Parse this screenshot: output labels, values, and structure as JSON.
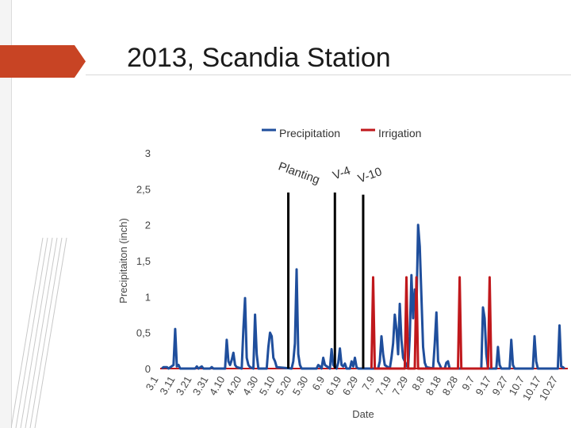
{
  "slide": {
    "title": "2013, Scandia Station"
  },
  "chart_data": {
    "type": "line",
    "title": "",
    "xlabel": "Date",
    "ylabel": "Precipitaiton (inch)",
    "ylim": [
      0,
      3
    ],
    "y_ticks": [
      "0",
      "0,5",
      "1",
      "1,5",
      "2",
      "2,5",
      "3"
    ],
    "x_ticks": [
      "3.1",
      "3.11",
      "3.21",
      "3.31",
      "4.10",
      "4.20",
      "4.30",
      "5.10",
      "5.20",
      "5.30",
      "6.9",
      "6.19",
      "6.29",
      "7.9",
      "7.19",
      "7.29",
      "8.8",
      "8.18",
      "8.28",
      "9.7",
      "9.17",
      "9.27",
      "10.7",
      "10.17",
      "10.27"
    ],
    "x_start": "3.1",
    "x_end": "11.1",
    "legend_position": "top",
    "grid": false,
    "series": [
      {
        "name": "Precipitation",
        "color": "#1f4e9c",
        "points": [
          [
            "3.2",
            0
          ],
          [
            "3.3",
            0.02
          ],
          [
            "3.5",
            0.02
          ],
          [
            "3.6",
            0
          ],
          [
            "3.9",
            0.05
          ],
          [
            "3.10",
            0.55
          ],
          [
            "3.11",
            0.03
          ],
          [
            "3.12",
            0.05
          ],
          [
            "3.13",
            0
          ],
          [
            "3.22",
            0
          ],
          [
            "3.23",
            0.03
          ],
          [
            "3.24",
            0
          ],
          [
            "3.26",
            0.03
          ],
          [
            "3.27",
            0
          ],
          [
            "3.31",
            0
          ],
          [
            "4.1",
            0.02
          ],
          [
            "4.2",
            0
          ],
          [
            "4.9",
            0
          ],
          [
            "4.10",
            0.4
          ],
          [
            "4.11",
            0.1
          ],
          [
            "4.12",
            0.05
          ],
          [
            "4.13",
            0.12
          ],
          [
            "4.14",
            0.22
          ],
          [
            "4.15",
            0.05
          ],
          [
            "4.16",
            0.02
          ],
          [
            "4.19",
            0
          ],
          [
            "4.20",
            0.55
          ],
          [
            "4.21",
            0.98
          ],
          [
            "4.22",
            0.15
          ],
          [
            "4.23",
            0.05
          ],
          [
            "4.24",
            0.02
          ],
          [
            "4.26",
            0
          ],
          [
            "4.27",
            0.75
          ],
          [
            "4.28",
            0.2
          ],
          [
            "4.29",
            0
          ],
          [
            "5.4",
            0
          ],
          [
            "5.5",
            0.3
          ],
          [
            "5.6",
            0.5
          ],
          [
            "5.7",
            0.45
          ],
          [
            "5.8",
            0.15
          ],
          [
            "5.9",
            0.1
          ],
          [
            "5.10",
            0.02
          ],
          [
            "5.19",
            0
          ],
          [
            "5.20",
            0.1
          ],
          [
            "5.21",
            0.35
          ],
          [
            "5.22",
            1.38
          ],
          [
            "5.23",
            0.2
          ],
          [
            "5.24",
            0.05
          ],
          [
            "5.25",
            0
          ],
          [
            "6.3",
            0
          ],
          [
            "6.4",
            0.05
          ],
          [
            "6.5",
            0.03
          ],
          [
            "6.6",
            0
          ],
          [
            "6.7",
            0.15
          ],
          [
            "6.8",
            0.05
          ],
          [
            "6.11",
            0
          ],
          [
            "6.12",
            0.27
          ],
          [
            "6.13",
            0.05
          ],
          [
            "6.14",
            0.02
          ],
          [
            "6.15",
            0
          ],
          [
            "6.16",
            0.08
          ],
          [
            "6.17",
            0.28
          ],
          [
            "6.18",
            0.05
          ],
          [
            "6.19",
            0.03
          ],
          [
            "6.20",
            0.07
          ],
          [
            "6.21",
            0
          ],
          [
            "6.23",
            0
          ],
          [
            "6.24",
            0.1
          ],
          [
            "6.25",
            0.03
          ],
          [
            "6.26",
            0.15
          ],
          [
            "6.27",
            0.02
          ],
          [
            "6.28",
            0
          ],
          [
            "7.10",
            0
          ],
          [
            "7.11",
            0.1
          ],
          [
            "7.12",
            0.45
          ],
          [
            "7.13",
            0.2
          ],
          [
            "7.14",
            0.05
          ],
          [
            "7.17",
            0
          ],
          [
            "7.18",
            0.15
          ],
          [
            "7.19",
            0.35
          ],
          [
            "7.20",
            0.75
          ],
          [
            "7.21",
            0.55
          ],
          [
            "7.22",
            0.2
          ],
          [
            "7.23",
            0.9
          ],
          [
            "7.24",
            0.4
          ],
          [
            "7.25",
            0.15
          ],
          [
            "7.26",
            0.1
          ],
          [
            "7.28",
            0
          ],
          [
            "7.29",
            0.45
          ],
          [
            "7.30",
            1.3
          ],
          [
            "7.31",
            0.7
          ],
          [
            "8.1",
            1.1
          ],
          [
            "8.2",
            0.8
          ],
          [
            "8.3",
            2.0
          ],
          [
            "8.4",
            1.7
          ],
          [
            "8.5",
            1.0
          ],
          [
            "8.6",
            0.3
          ],
          [
            "8.7",
            0.08
          ],
          [
            "8.8",
            0.02
          ],
          [
            "8.12",
            0
          ],
          [
            "8.13",
            0.35
          ],
          [
            "8.14",
            0.78
          ],
          [
            "8.15",
            0.1
          ],
          [
            "8.16",
            0.05
          ],
          [
            "8.17",
            0
          ],
          [
            "8.19",
            0
          ],
          [
            "8.20",
            0.08
          ],
          [
            "8.21",
            0.1
          ],
          [
            "8.22",
            0
          ],
          [
            "9.10",
            0
          ],
          [
            "9.11",
            0.85
          ],
          [
            "9.12",
            0.7
          ],
          [
            "9.13",
            0.2
          ],
          [
            "9.14",
            0
          ],
          [
            "9.19",
            0
          ],
          [
            "9.20",
            0.3
          ],
          [
            "9.21",
            0.05
          ],
          [
            "9.22",
            0
          ],
          [
            "9.27",
            0
          ],
          [
            "9.28",
            0.4
          ],
          [
            "9.29",
            0.05
          ],
          [
            "9.30",
            0
          ],
          [
            "10.11",
            0
          ],
          [
            "10.12",
            0.45
          ],
          [
            "10.13",
            0.1
          ],
          [
            "10.14",
            0
          ],
          [
            "10.26",
            0
          ],
          [
            "10.27",
            0.6
          ],
          [
            "10.28",
            0.03
          ],
          [
            "10.29",
            0.02
          ],
          [
            "10.30",
            0
          ]
        ]
      },
      {
        "name": "Irrigation",
        "color": "#c0181c",
        "points": [
          [
            "7.6",
            0
          ],
          [
            "7.7",
            1.27
          ],
          [
            "7.8",
            0
          ],
          [
            "7.26",
            0
          ],
          [
            "7.27",
            1.27
          ],
          [
            "7.28",
            0
          ],
          [
            "8.1",
            0
          ],
          [
            "8.2",
            1.27
          ],
          [
            "8.3",
            0
          ],
          [
            "8.27",
            0
          ],
          [
            "8.28",
            1.27
          ],
          [
            "8.29",
            0
          ],
          [
            "9.14",
            0
          ],
          [
            "9.15",
            1.27
          ],
          [
            "9.16",
            0
          ]
        ]
      }
    ],
    "annotations": [
      {
        "label": "Planting",
        "date": "5.17",
        "top": 2.45
      },
      {
        "label": "V-4",
        "date": "6.14",
        "top": 2.45
      },
      {
        "label": "V-10",
        "date": "7.1",
        "top": 2.42
      }
    ]
  }
}
